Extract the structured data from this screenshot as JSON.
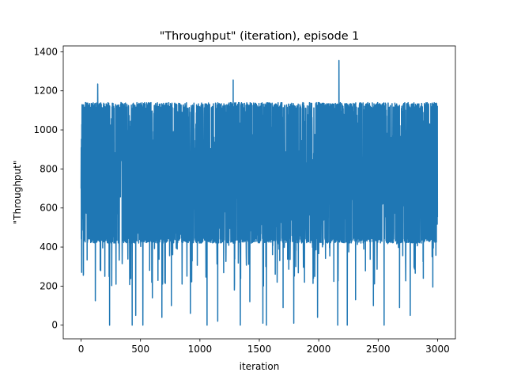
{
  "chart_data": {
    "type": "line",
    "title": "\"Throughput\" (iteration), episode 1",
    "xlabel": "iteration",
    "ylabel": "\"Throughput\"",
    "xlim": [
      -150,
      3150
    ],
    "ylim": [
      -70,
      1430
    ],
    "xticks": [
      0,
      500,
      1000,
      1500,
      2000,
      2500,
      3000
    ],
    "yticks": [
      0,
      200,
      400,
      600,
      800,
      1000,
      1200,
      1400
    ],
    "grid": false,
    "legend": "none",
    "series": [
      {
        "color": "#1f77b4",
        "n_points": 3000,
        "typical_min": 420,
        "typical_max": 1140,
        "peaks": [
          {
            "x": 0,
            "y": 700
          },
          {
            "x": 140,
            "y": 1235
          },
          {
            "x": 1280,
            "y": 1255
          },
          {
            "x": 2170,
            "y": 1355
          }
        ],
        "dips": [
          {
            "x": 5,
            "y": 270
          },
          {
            "x": 120,
            "y": 125
          },
          {
            "x": 200,
            "y": 250
          },
          {
            "x": 240,
            "y": 0
          },
          {
            "x": 430,
            "y": 0
          },
          {
            "x": 460,
            "y": 50
          },
          {
            "x": 520,
            "y": 0
          },
          {
            "x": 600,
            "y": 140
          },
          {
            "x": 680,
            "y": 40
          },
          {
            "x": 760,
            "y": 100
          },
          {
            "x": 850,
            "y": 210
          },
          {
            "x": 920,
            "y": 60
          },
          {
            "x": 1060,
            "y": 0
          },
          {
            "x": 1150,
            "y": 20
          },
          {
            "x": 1290,
            "y": 180
          },
          {
            "x": 1340,
            "y": 0
          },
          {
            "x": 1420,
            "y": 120
          },
          {
            "x": 1530,
            "y": 10
          },
          {
            "x": 1560,
            "y": 0
          },
          {
            "x": 1650,
            "y": 220
          },
          {
            "x": 1700,
            "y": 90
          },
          {
            "x": 1790,
            "y": 10
          },
          {
            "x": 1880,
            "y": 220
          },
          {
            "x": 1990,
            "y": 40
          },
          {
            "x": 2160,
            "y": 0
          },
          {
            "x": 2240,
            "y": 0
          },
          {
            "x": 2310,
            "y": 130
          },
          {
            "x": 2460,
            "y": 100
          },
          {
            "x": 2550,
            "y": 0
          },
          {
            "x": 2680,
            "y": 90
          },
          {
            "x": 2770,
            "y": 50
          },
          {
            "x": 2880,
            "y": 240
          },
          {
            "x": 2960,
            "y": 195
          }
        ]
      }
    ]
  }
}
